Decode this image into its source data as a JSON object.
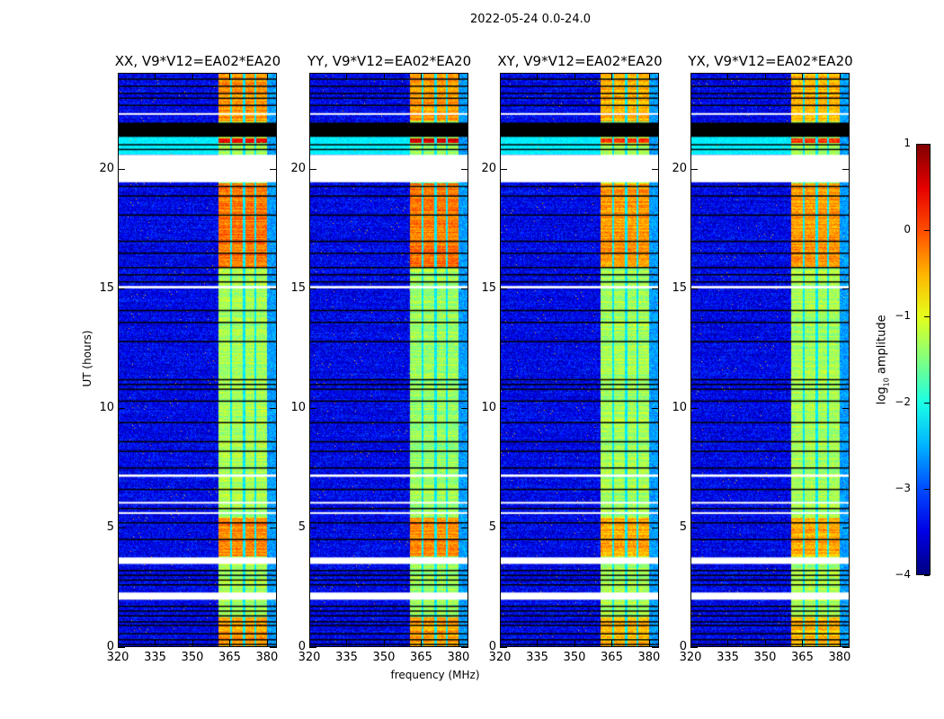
{
  "chart_data": {
    "type": "heatmap",
    "suptitle": "2022-05-24 0.0-24.0",
    "xlabel": "frequency (MHz)",
    "ylabel": "UT (hours)",
    "xlim": [
      320,
      384
    ],
    "ylim": [
      0,
      24
    ],
    "xticks": [
      320,
      335,
      350,
      365,
      380
    ],
    "yticks": [
      0,
      5,
      10,
      15,
      20
    ],
    "panels": [
      {
        "title": "XX, V9*V12=EA02*EA20",
        "strength": 1.0
      },
      {
        "title": "YY, V9*V12=EA02*EA20",
        "strength": 1.05
      },
      {
        "title": "XY, V9*V12=EA02*EA20",
        "strength": 0.85
      },
      {
        "title": "YX, V9*V12=EA02*EA20",
        "strength": 0.85
      }
    ],
    "colorbar": {
      "label_main": "log",
      "label_sub": "10",
      "label_tail": " amplitude",
      "range": [
        -4,
        1
      ],
      "ticks": [
        "1",
        "0",
        "−1",
        "−2",
        "−3",
        "−4"
      ],
      "tick_values": [
        1,
        0,
        -1,
        -2,
        -3,
        -4
      ],
      "colormap": "jet"
    },
    "model": {
      "background_log_amp": -3.3,
      "band_mhz": [
        360.5,
        380.3
      ],
      "band_separators_mhz": [
        365.7,
        371.0,
        375.6
      ],
      "bright_periods_hours": [
        [
          0,
          1.2,
          -0.4
        ],
        [
          3.75,
          5.4,
          -0.3
        ],
        [
          15.9,
          19.4,
          -0.2
        ],
        [
          21.1,
          21.3,
          0.5
        ],
        [
          22.0,
          24,
          -0.35
        ]
      ],
      "moderate_log_amp": -1.3,
      "flagged_hours": [
        [
          19.45,
          20.6
        ],
        [
          3.45,
          3.72
        ],
        [
          1.95,
          2.25
        ],
        [
          5.55,
          5.62
        ],
        [
          6.0,
          6.05
        ],
        [
          7.1,
          7.2
        ],
        [
          15.0,
          15.1
        ],
        [
          22.3,
          22.35
        ]
      ],
      "dark_band_hours": [
        [
          21.35,
          21.95
        ]
      ],
      "dark_rows_hours": [
        0.1,
        0.3,
        0.55,
        0.9,
        1.05,
        1.3,
        1.5,
        1.7,
        2.6,
        2.8,
        3.0,
        3.2,
        4.5,
        5.2,
        5.8,
        6.6,
        7.5,
        8.2,
        8.6,
        9.4,
        10.3,
        10.8,
        11.0,
        11.2,
        12.8,
        13.6,
        14.1,
        15.3,
        15.6,
        15.9,
        16.5,
        17.0,
        18.1,
        18.9,
        19.3,
        20.85,
        21.05,
        22.7,
        23.0,
        23.2,
        23.5,
        23.8
      ]
    }
  }
}
